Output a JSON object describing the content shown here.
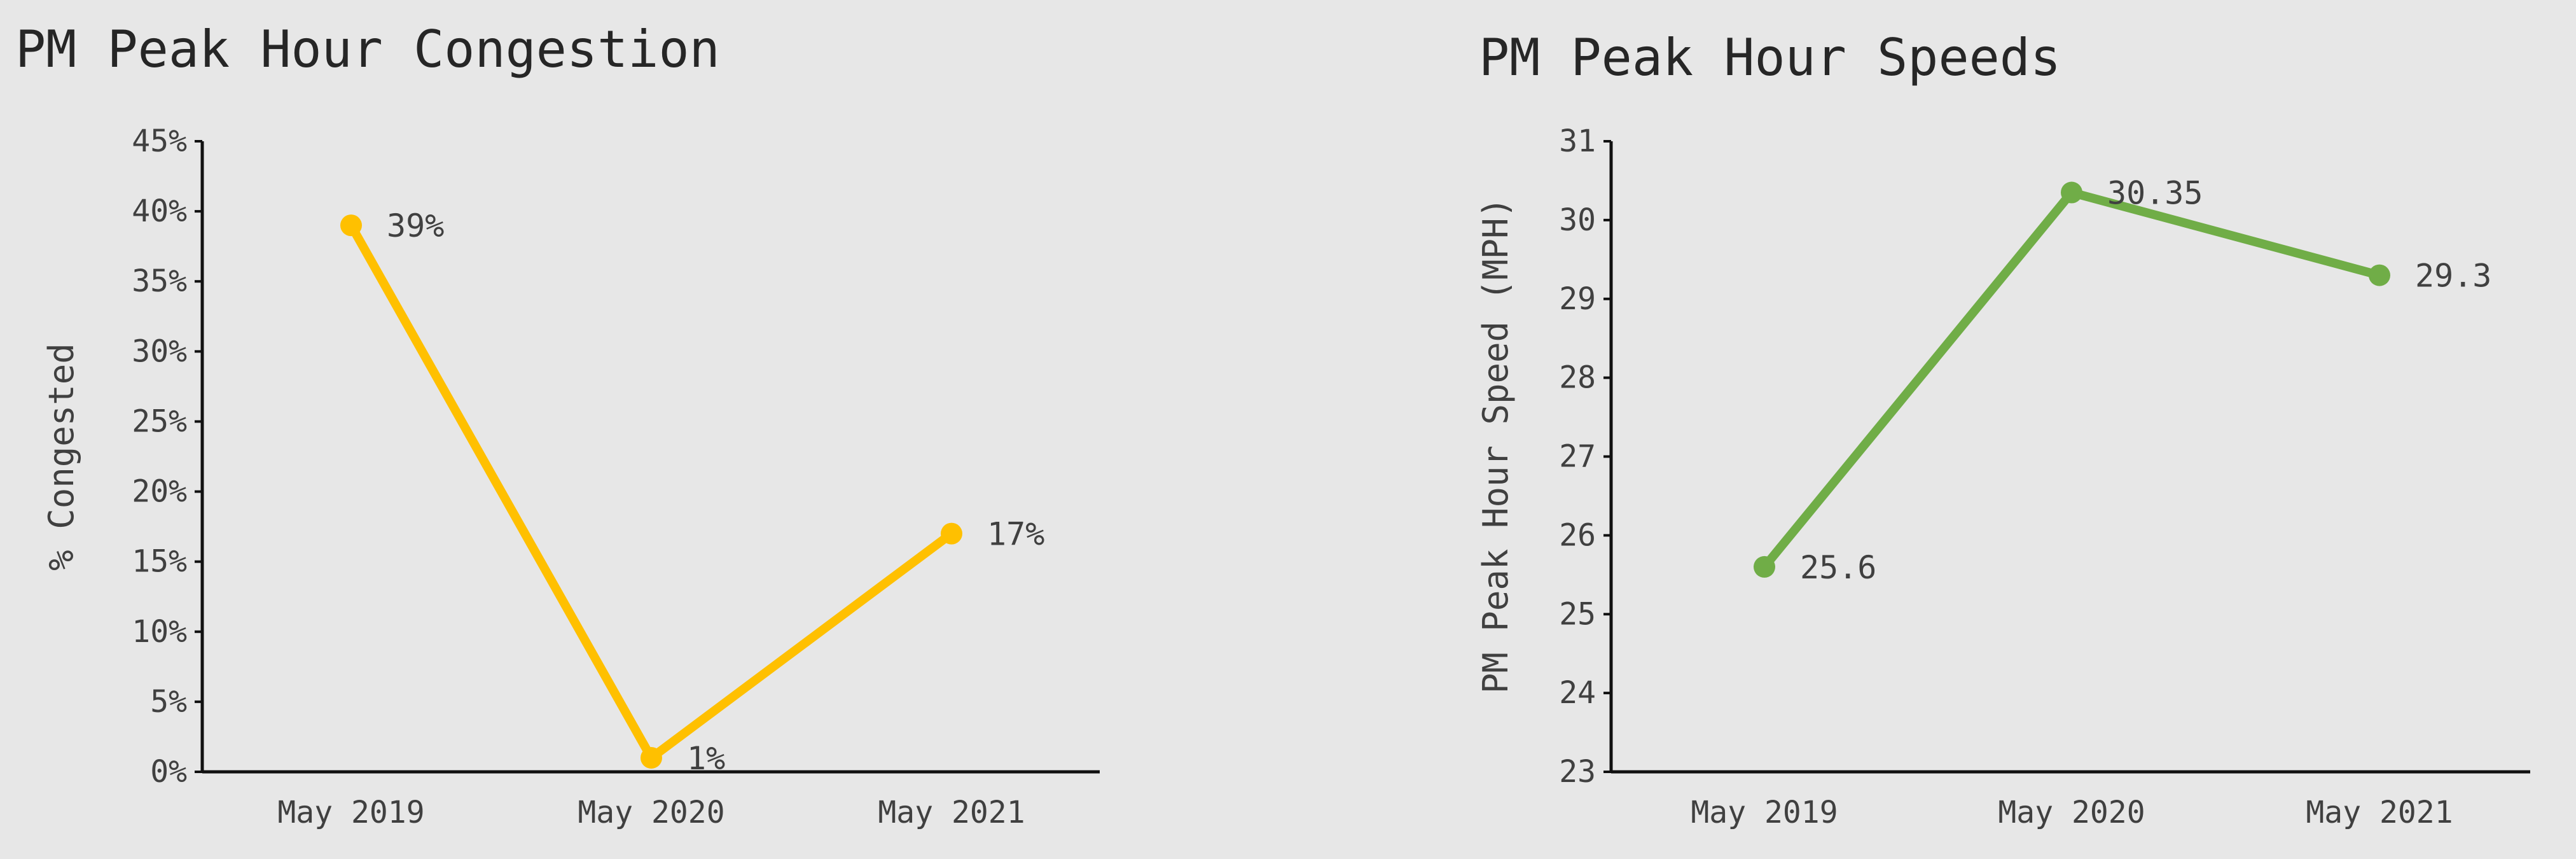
{
  "chart_data": [
    {
      "type": "line",
      "title": "PM Peak Hour Congestion",
      "xlabel": "",
      "ylabel": "% Congested",
      "categories": [
        "May 2019",
        "May 2020",
        "May 2021"
      ],
      "series": [
        {
          "values": [
            0.39,
            0.01,
            0.17
          ],
          "color": "#FFC000",
          "labels": [
            "39%",
            "1%",
            "17%"
          ]
        }
      ],
      "ylim": [
        0,
        0.45
      ],
      "yticks": [
        0,
        0.05,
        0.1,
        0.15,
        0.2,
        0.25,
        0.3,
        0.35,
        0.4,
        0.45
      ],
      "yticklabels": [
        "0%",
        "5%",
        "10%",
        "15%",
        "20%",
        "25%",
        "30%",
        "35%",
        "40%",
        "45%"
      ],
      "grid": false,
      "legend": "none"
    },
    {
      "type": "line",
      "title": "PM Peak Hour Speeds",
      "xlabel": "",
      "ylabel": "PM Peak Hour Speed (MPH)",
      "categories": [
        "May 2019",
        "May 2020",
        "May 2021"
      ],
      "series": [
        {
          "values": [
            25.6,
            30.35,
            29.3
          ],
          "color": "#70AD47",
          "labels": [
            "25.6",
            "30.35",
            "29.3"
          ]
        }
      ],
      "ylim": [
        23,
        31
      ],
      "yticks": [
        23,
        24,
        25,
        26,
        27,
        28,
        29,
        30,
        31
      ],
      "yticklabels": [
        "23",
        "24",
        "25",
        "26",
        "27",
        "28",
        "29",
        "30",
        "31"
      ],
      "grid": false,
      "legend": "none"
    }
  ]
}
